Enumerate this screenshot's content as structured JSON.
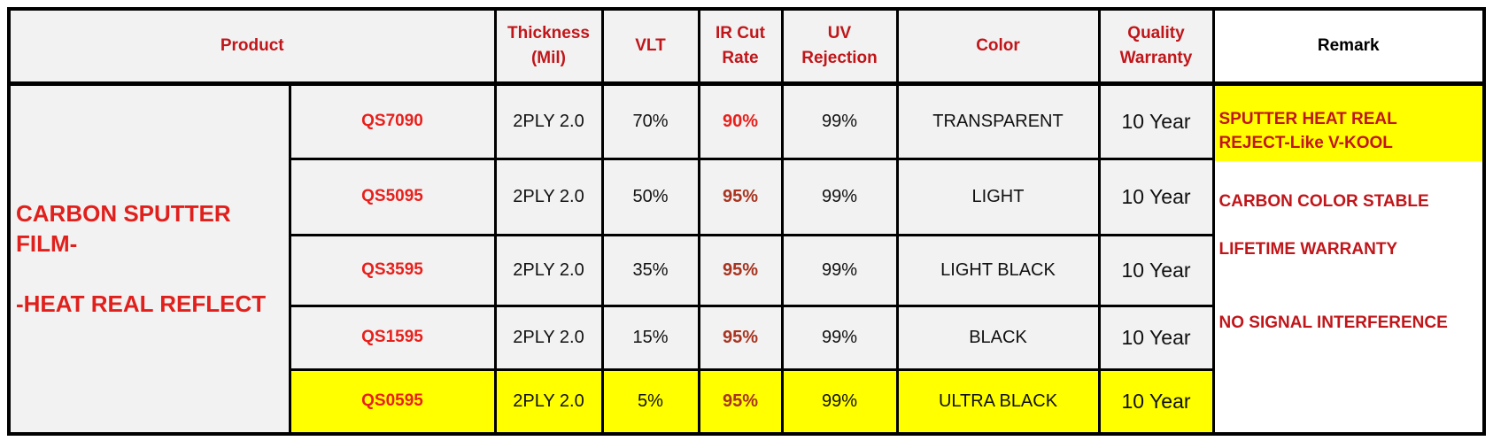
{
  "header": {
    "product": "Product",
    "thickness": "Thickness\n(Mil)",
    "vlt": "VLT",
    "ir": "IR Cut\nRate",
    "uv": "UV\nRejection",
    "color": "Color",
    "warranty": "Quality\nWarranty",
    "remark": "Remark"
  },
  "product_name": [
    "CARBON SPUTTER\nFILM-",
    "-HEAT REAL  REFLECT"
  ],
  "rows": [
    [
      "QS7090",
      "2PLY 2.0",
      "70%",
      "90%",
      "99%",
      "TRANSPARENT",
      "10 Year"
    ],
    [
      "QS5095",
      "2PLY 2.0",
      "50%",
      "95%",
      "99%",
      "LIGHT",
      "10 Year"
    ],
    [
      "QS3595",
      "2PLY 2.0",
      "35%",
      "95%",
      "99%",
      "LIGHT BLACK",
      "10 Year"
    ],
    [
      "QS1595",
      "2PLY 2.0",
      "15%",
      "95%",
      "99%",
      "BLACK",
      "10 Year"
    ],
    [
      "QS0595",
      "2PLY 2.0",
      "5%",
      "95%",
      "99%",
      "ULTRA BLACK",
      "10 Year"
    ]
  ],
  "remarks": [
    "SPUTTER HEAT REAL\nREJECT-Like V-KOOL",
    "CARBON COLOR STABLE",
    "LIFETIME WARRANTY",
    "NO SIGNAL INTERFERENCE"
  ]
}
